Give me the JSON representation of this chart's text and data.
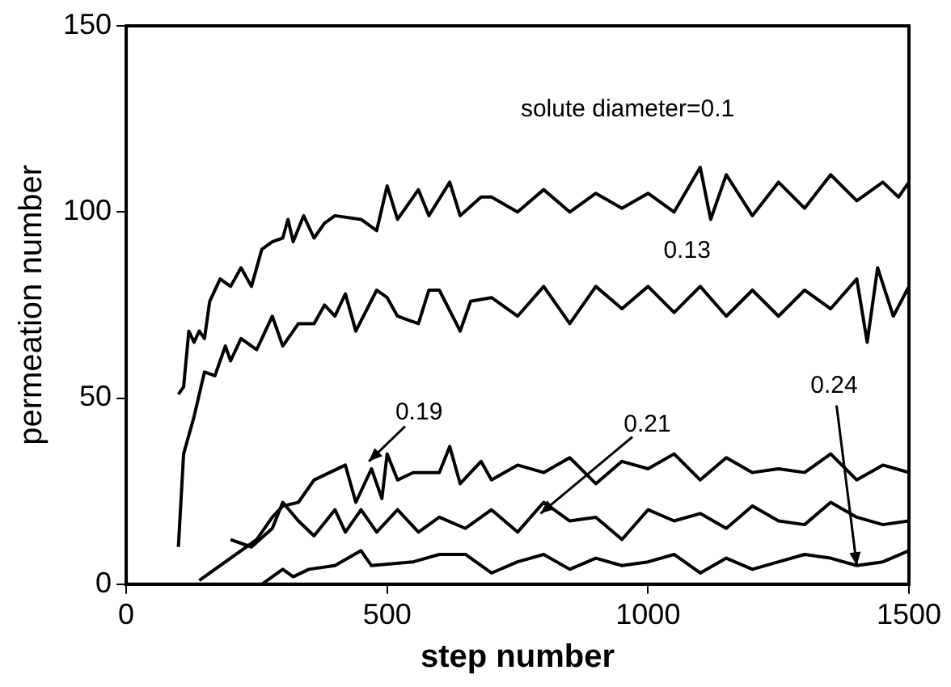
{
  "chart_data": {
    "type": "line",
    "xlabel": "step number",
    "ylabel": "permeation number",
    "xlim": [
      0,
      1500
    ],
    "xticks": [
      0,
      500,
      1000,
      1500
    ],
    "ylim": [
      0,
      150
    ],
    "yticks": [
      0,
      50,
      100,
      150
    ],
    "grid": false,
    "legend": false,
    "marker": "none",
    "line_style": "solid",
    "series": [
      {
        "color": "#000000",
        "x": [
          100,
          110,
          120,
          130,
          140,
          150,
          160,
          180,
          200,
          220,
          240,
          260,
          280,
          300,
          310,
          320,
          340,
          360,
          380,
          400,
          450,
          480,
          500,
          520,
          560,
          580,
          620,
          640,
          680,
          700,
          750,
          800,
          850,
          900,
          950,
          1000,
          1050,
          1100,
          1120,
          1150,
          1200,
          1250,
          1300,
          1350,
          1400,
          1450,
          1480,
          1500
        ],
        "values": [
          51,
          53,
          68,
          65,
          68,
          66,
          76,
          82,
          80,
          85,
          80,
          90,
          92,
          93,
          98,
          92,
          99,
          93,
          97,
          99,
          98,
          95,
          107,
          98,
          106,
          99,
          108,
          99,
          104,
          104,
          100,
          106,
          100,
          105,
          101,
          105,
          100,
          112,
          98,
          110,
          99,
          108,
          101,
          110,
          103,
          108,
          104,
          108
        ]
      },
      {
        "color": "#000000",
        "x": [
          100,
          110,
          130,
          150,
          170,
          190,
          200,
          220,
          250,
          280,
          300,
          330,
          360,
          380,
          400,
          420,
          440,
          480,
          500,
          520,
          560,
          580,
          600,
          640,
          660,
          700,
          750,
          800,
          850,
          900,
          950,
          1000,
          1050,
          1100,
          1150,
          1200,
          1250,
          1300,
          1350,
          1400,
          1420,
          1440,
          1470,
          1500
        ],
        "values": [
          10,
          35,
          45,
          57,
          56,
          64,
          60,
          66,
          63,
          72,
          64,
          70,
          70,
          75,
          72,
          78,
          68,
          79,
          77,
          72,
          70,
          79,
          79,
          68,
          76,
          77,
          72,
          80,
          70,
          80,
          74,
          80,
          73,
          80,
          72,
          79,
          72,
          79,
          74,
          82,
          65,
          85,
          72,
          80
        ]
      },
      {
        "color": "#000000",
        "x": [
          140,
          250,
          280,
          300,
          330,
          360,
          390,
          420,
          440,
          470,
          490,
          500,
          520,
          550,
          600,
          620,
          640,
          680,
          700,
          750,
          800,
          850,
          900,
          950,
          1000,
          1050,
          1100,
          1150,
          1200,
          1250,
          1300,
          1350,
          1400,
          1450,
          1500
        ],
        "values": [
          1,
          12,
          18,
          21,
          22,
          28,
          30,
          32,
          22,
          31,
          23,
          35,
          28,
          30,
          30,
          37,
          27,
          33,
          28,
          32,
          30,
          34,
          27,
          33,
          31,
          35,
          28,
          34,
          30,
          31,
          30,
          35,
          28,
          32,
          30
        ]
      },
      {
        "color": "#000000",
        "x": [
          200,
          240,
          280,
          300,
          330,
          360,
          400,
          420,
          450,
          480,
          520,
          560,
          600,
          650,
          700,
          750,
          800,
          850,
          900,
          950,
          1000,
          1050,
          1100,
          1150,
          1200,
          1250,
          1300,
          1350,
          1400,
          1450,
          1500
        ],
        "values": [
          12,
          10,
          15,
          22,
          17,
          13,
          20,
          14,
          20,
          14,
          20,
          14,
          18,
          15,
          20,
          14,
          22,
          17,
          18,
          12,
          20,
          17,
          19,
          15,
          21,
          17,
          16,
          22,
          18,
          16,
          17
        ]
      },
      {
        "color": "#000000",
        "x": [
          260,
          300,
          320,
          350,
          400,
          450,
          470,
          550,
          600,
          650,
          700,
          750,
          800,
          850,
          900,
          950,
          1000,
          1050,
          1100,
          1150,
          1200,
          1250,
          1300,
          1350,
          1400,
          1450,
          1500
        ],
        "values": [
          0,
          4,
          2,
          4,
          5,
          9,
          5,
          6,
          8,
          8,
          3,
          6,
          8,
          4,
          7,
          5,
          6,
          8,
          3,
          7,
          4,
          6,
          8,
          7,
          5,
          6,
          9
        ]
      }
    ],
    "annotations": [
      "solute diameter=0.1",
      {
        "text": "0.13",
        "x": 1050,
        "y": 73
      },
      {
        "text": "0.19",
        "x": 465,
        "y": 33
      },
      {
        "text": "0.21",
        "x": 794,
        "y": 19
      },
      {
        "text": "0.24",
        "x": 1400,
        "y": 5
      }
    ]
  }
}
